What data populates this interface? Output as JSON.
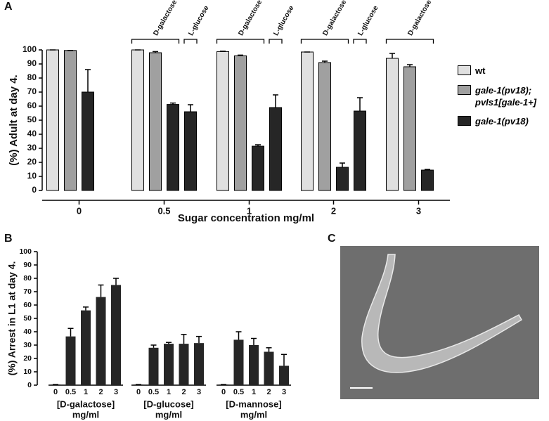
{
  "chart_data": [
    {
      "type": "bar",
      "panel": "A",
      "ylabel": "(%) Adult at day 4.",
      "xlabel": "Sugar concentration mg/ml",
      "categories": [
        "0",
        "0.5",
        "1",
        "2",
        "3"
      ],
      "bracket_labels": [
        "D-galactose",
        "L-glucose"
      ],
      "ylim": [
        0,
        100
      ],
      "yticks": [
        0,
        10,
        20,
        30,
        40,
        50,
        60,
        70,
        80,
        90,
        100
      ],
      "series": [
        {
          "name": "wt",
          "color": "#e0e0e0",
          "values": [
            100,
            100,
            98.8,
            98.5,
            94
          ],
          "errors": [
            0,
            0,
            0.3,
            0,
            3.5
          ]
        },
        {
          "name": "gale-1(pv18); pvIs1[gale-1+]",
          "color": "#a0a0a0",
          "values": [
            99.6,
            98,
            95.8,
            91,
            88
          ],
          "errors": [
            0,
            0.8,
            0.5,
            1,
            1.5
          ]
        },
        {
          "name": "gale-1(pv18)",
          "color": "#262626",
          "values": [
            70,
            61.2,
            31.5,
            16.5,
            14.5
          ],
          "errors": [
            16,
            1,
            1,
            3,
            0.5
          ],
          "l_glucose_values": [
            null,
            56,
            59,
            56.5,
            null
          ],
          "l_glucose_errors": [
            null,
            5,
            9,
            9.5,
            null
          ]
        }
      ]
    },
    {
      "type": "bar",
      "panel": "B",
      "ylabel": "(%) Arrest in L1 at day 4.",
      "color": "#262626",
      "ylim": [
        0,
        100
      ],
      "yticks": [
        0,
        10,
        20,
        30,
        40,
        50,
        60,
        70,
        80,
        90,
        100
      ],
      "groups": [
        {
          "label": [
            "[D-galactose]",
            "mg/ml"
          ],
          "categories": [
            "0",
            "0.5",
            "1",
            "2",
            "3"
          ],
          "values": [
            0.5,
            36.5,
            56,
            66,
            75
          ],
          "errors": [
            0,
            6,
            2.5,
            9,
            5
          ]
        },
        {
          "label": [
            "[D-glucose]",
            "mg/ml"
          ],
          "categories": [
            "0",
            "0.5",
            "1",
            "2",
            "3"
          ],
          "values": [
            0.5,
            28,
            31,
            31,
            31.5
          ],
          "errors": [
            0,
            2,
            1,
            7,
            5
          ]
        },
        {
          "label": [
            "[D-mannose]",
            "mg/ml"
          ],
          "categories": [
            "0",
            "0.5",
            "1",
            "2",
            "3"
          ],
          "values": [
            0.5,
            34,
            30,
            25,
            14.5
          ],
          "errors": [
            0,
            6,
            5,
            3,
            8.5
          ]
        }
      ]
    }
  ],
  "panel_c": {
    "label": "C"
  }
}
